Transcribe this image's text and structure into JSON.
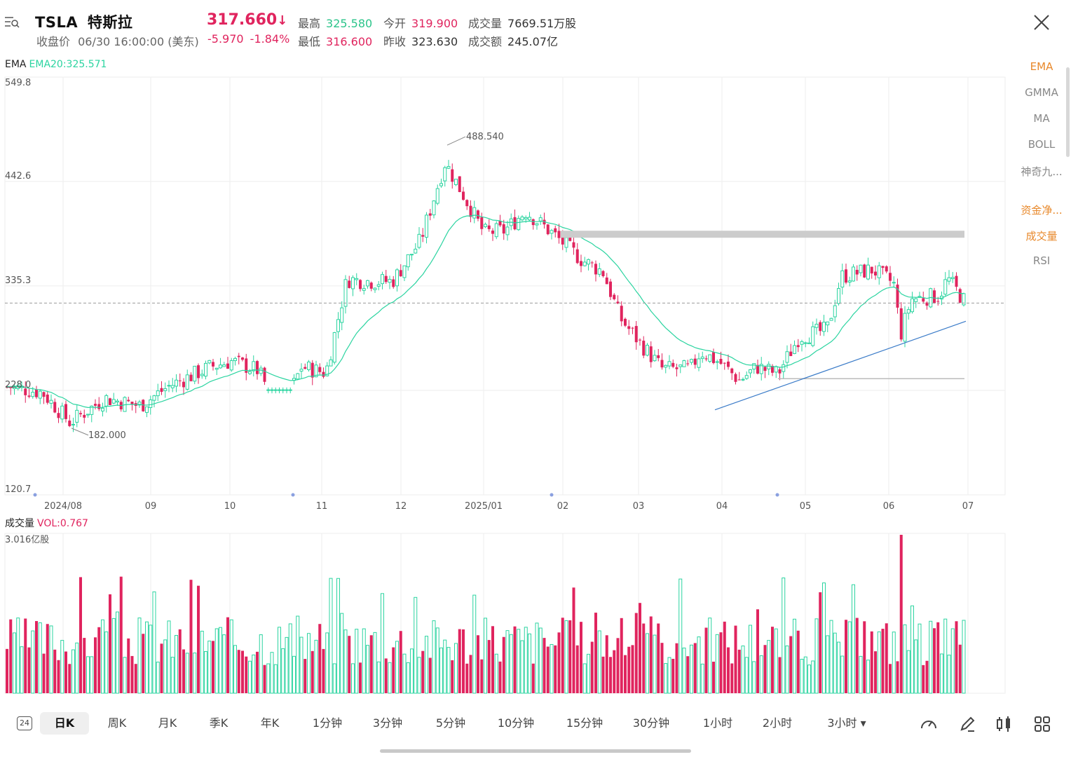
{
  "header": {
    "symbol": "TSLA",
    "name": "特斯拉",
    "price": "317.660",
    "price_arrow": "↓",
    "close_label": "收盘价",
    "close_time": "06/30 16:00:00 (美东)",
    "change": "-5.970",
    "change_pct": "-1.84%",
    "high_label": "最高",
    "high": "325.580",
    "open_label": "今开",
    "open": "319.900",
    "volume_label": "成交量",
    "volume": "7669.51万股",
    "low_label": "最低",
    "low": "316.600",
    "prev_label": "昨收",
    "prev": "323.630",
    "turnover_label": "成交额",
    "turnover": "245.07亿"
  },
  "indicators": {
    "items": [
      {
        "label": "EMA",
        "active": true
      },
      {
        "label": "GMMA",
        "active": false
      },
      {
        "label": "MA",
        "active": false
      },
      {
        "label": "BOLL",
        "active": false
      },
      {
        "label": "神奇九...",
        "active": false
      },
      {
        "label": "资金净...",
        "active": true
      },
      {
        "label": "成交量",
        "active": true
      },
      {
        "label": "RSI",
        "active": false
      }
    ]
  },
  "ema_label": {
    "name": "EMA",
    "value": "EMA20:325.571"
  },
  "vol_label": {
    "name": "成交量",
    "value": "VOL:0.767",
    "max": "3.016亿股"
  },
  "toolbar": {
    "badge": "24",
    "periods": [
      "日K",
      "周K",
      "月K",
      "季K",
      "年K",
      "1分钟",
      "3分钟",
      "5分钟",
      "10分钟",
      "15分钟",
      "30分钟",
      "1小时",
      "2小时",
      "3小时 ▾"
    ]
  },
  "colors": {
    "up": "#2bd4a0",
    "down": "#e0245e",
    "ema": "#2bd4a0",
    "trend": "#3a7bc8",
    "accent": "#e8882a"
  },
  "chart_data": {
    "type": "candlestick",
    "y_ticks": [
      "549.8",
      "442.6",
      "335.3",
      "228.0",
      "120.7"
    ],
    "ylim": [
      120.7,
      549.8
    ],
    "x_ticks": [
      "2024/08",
      "09",
      "10",
      "11",
      "12",
      "2025/01",
      "02",
      "03",
      "04",
      "05",
      "06",
      "07"
    ],
    "annotations": {
      "high": "488.540",
      "low": "182.000"
    },
    "last_close": 317.66,
    "monthly_closes": [
      {
        "month": "2024/07",
        "close": 232
      },
      {
        "month": "2024/08",
        "close": 214
      },
      {
        "month": "2024/09",
        "close": 261
      },
      {
        "month": "2024/10",
        "close": 249
      },
      {
        "month": "2024/11",
        "close": 346
      },
      {
        "month": "2024/12",
        "close": 404
      },
      {
        "month": "2025/01",
        "close": 404
      },
      {
        "month": "2025/02",
        "close": 292
      },
      {
        "month": "2025/03",
        "close": 259
      },
      {
        "month": "2025/04",
        "close": 282
      },
      {
        "month": "2025/05",
        "close": 346
      },
      {
        "month": "2025/06",
        "close": 317.66
      }
    ]
  }
}
